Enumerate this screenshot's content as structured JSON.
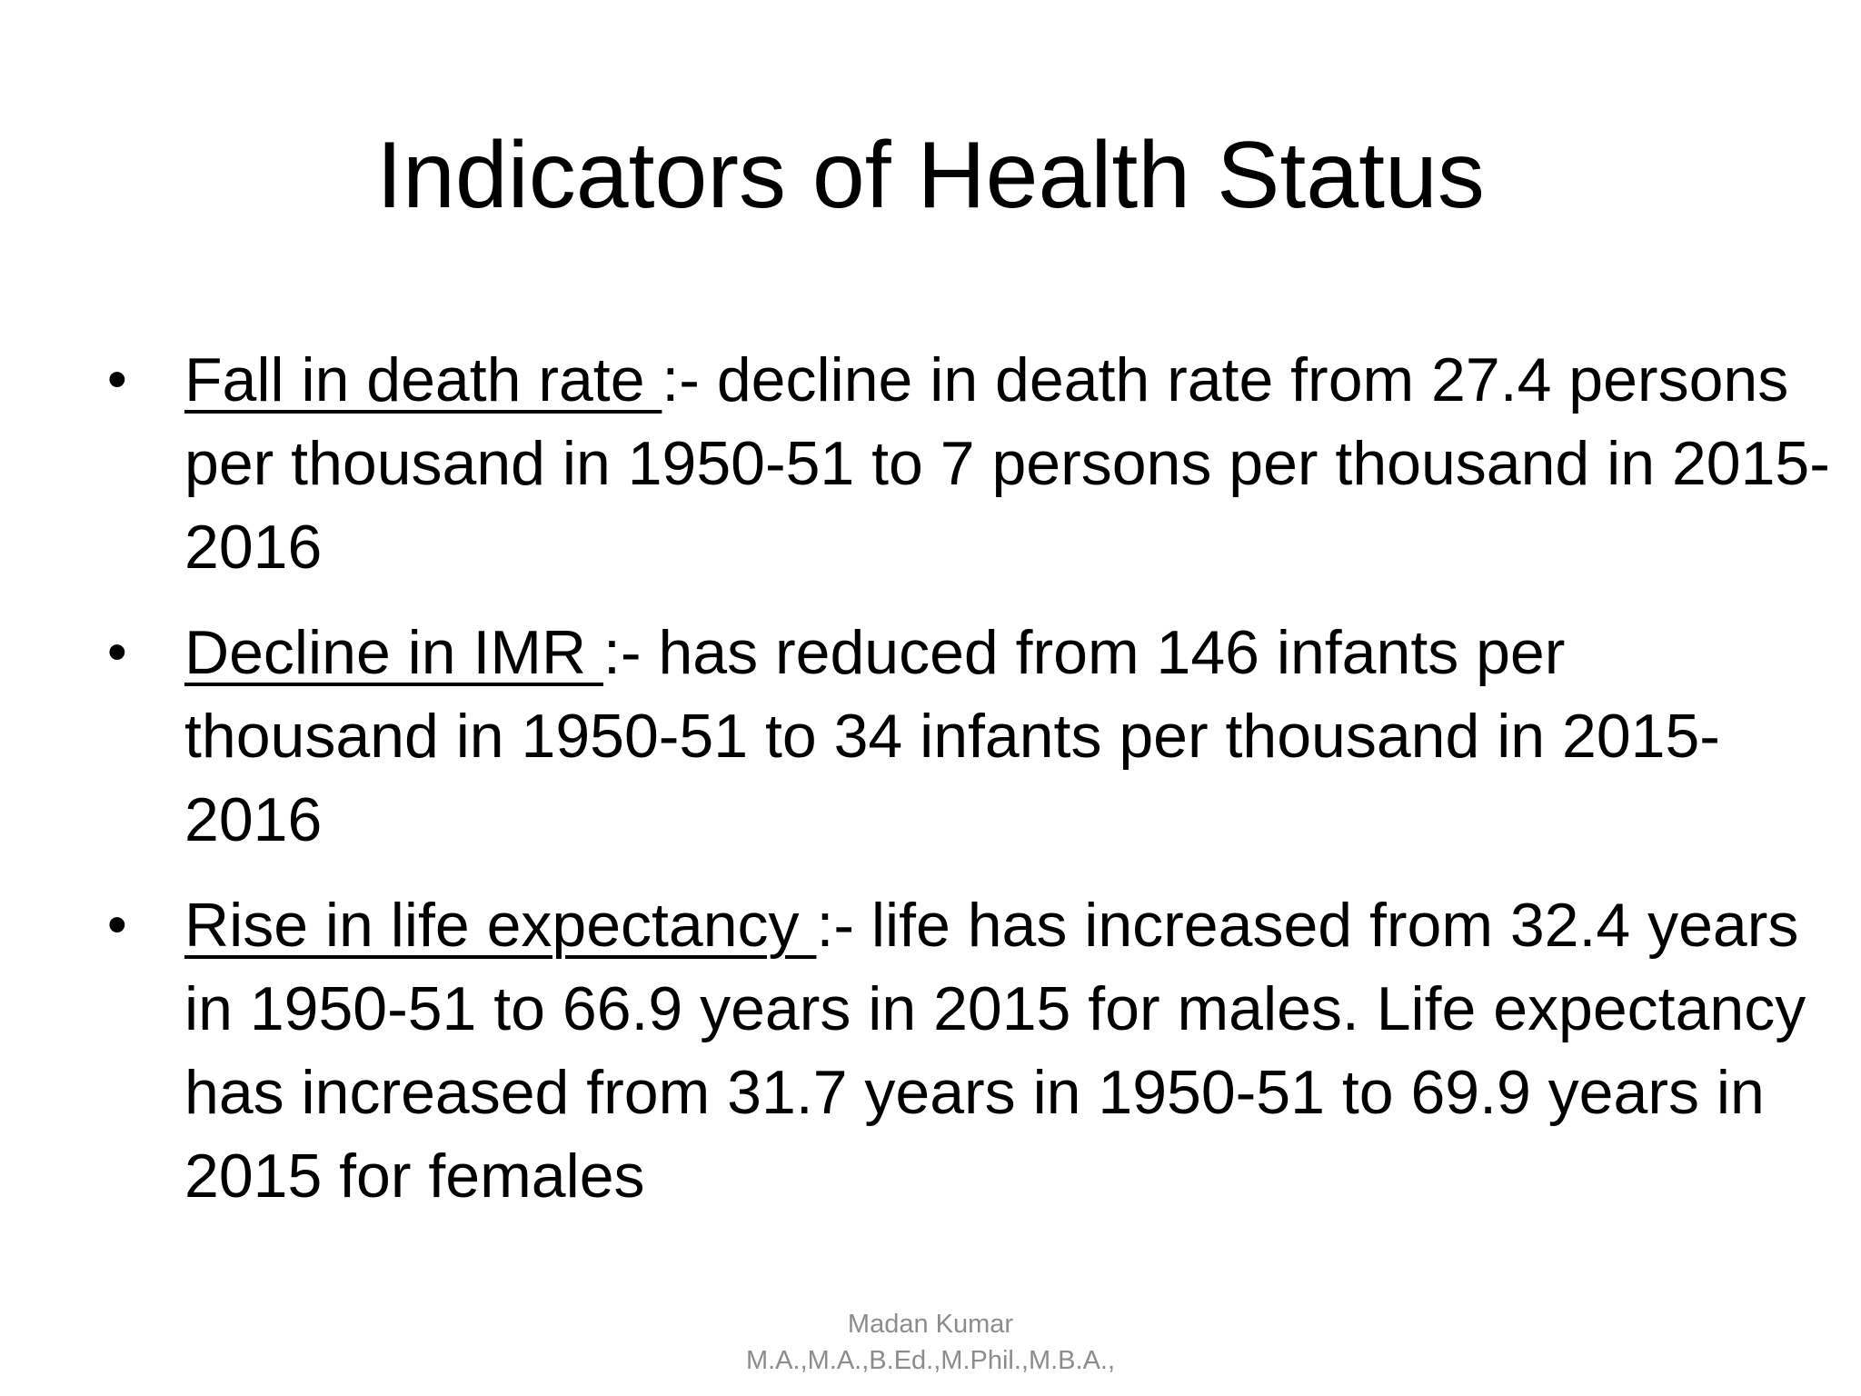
{
  "slide": {
    "title": "Indicators of Health Status",
    "bullets": [
      {
        "term": "Fall in death rate ",
        "text": ":- decline in death rate from 27.4 persons per thousand in 1950-51 to 7 persons per thousand in 2015-2016"
      },
      {
        "term": "Decline in IMR ",
        "text": ":- has reduced from 146 infants per thousand in 1950-51 to 34 infants per thousand in 2015-2016"
      },
      {
        "term": "Rise in life expectancy ",
        "text": ":- life has increased from 32.4 years in 1950-51 to 66.9 years in 2015 for males. Life expectancy has increased from 31.7 years in 1950-51 to 69.9 years in 2015 for females"
      }
    ],
    "bullet_symbol": "•",
    "footer": {
      "author": "Madan Kumar",
      "qualifications": "M.A.,M.A.,B.Ed.,M.Phil.,M.B.A.,"
    }
  }
}
